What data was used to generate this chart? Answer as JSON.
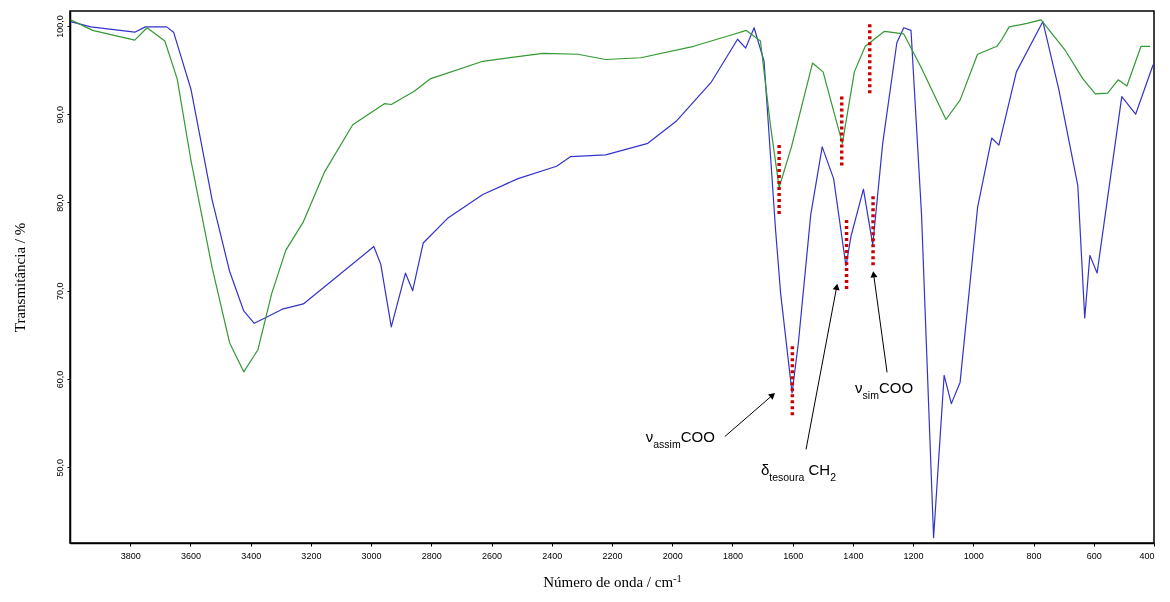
{
  "chart_data": {
    "type": "line",
    "xlabel": "Número de onda / cm$^{-1}$",
    "ylabel": "Transmitância / %",
    "xlim": [
      4000,
      400
    ],
    "xticks": [
      3800,
      3600,
      3400,
      3200,
      3000,
      2800,
      2600,
      2400,
      2200,
      2000,
      1800,
      1600,
      1400,
      1200,
      1000,
      800,
      600,
      400
    ],
    "ylim": [
      41.4,
      101.7
    ],
    "yticks": [
      {
        "value": 50,
        "label": "50,0"
      },
      {
        "value": 60,
        "label": "60,0"
      },
      {
        "value": 70,
        "label": "70,0"
      },
      {
        "value": 80,
        "label": "80,0"
      },
      {
        "value": 90,
        "label": "90,0"
      },
      {
        "value": 100,
        "label": "100,0"
      }
    ],
    "grid": false,
    "series": [
      {
        "color": "#3333cc",
        "line_style": "solid",
        "x": [
          3998,
          3931,
          3785,
          3750,
          3679,
          3656,
          3598,
          3528,
          3470,
          3423,
          3388,
          3341,
          3295,
          3225,
          3120,
          2991,
          2968,
          2933,
          2886,
          2862,
          2827,
          2746,
          2629,
          2512,
          2384,
          2337,
          2221,
          2081,
          1987,
          1871,
          1783,
          1756,
          1728,
          1695,
          1657,
          1640,
          1602,
          1581,
          1540,
          1502,
          1464,
          1423,
          1406,
          1365,
          1334,
          1301,
          1254,
          1231,
          1207,
          1172,
          1132,
          1097,
          1073,
          1044,
          986,
          939,
          915,
          857,
          769,
          716,
          653,
          630,
          613,
          589,
          507,
          461,
          403
        ],
        "values": [
          100.5,
          99.9,
          99.3,
          99.9,
          99.9,
          99.3,
          92.8,
          80.3,
          72.2,
          67.7,
          66.3,
          67.1,
          67.9,
          68.5,
          71.4,
          75.0,
          73.0,
          65.9,
          72.0,
          70.0,
          75.4,
          78.2,
          80.9,
          82.7,
          84.1,
          85.2,
          85.4,
          86.7,
          89.2,
          93.6,
          98.5,
          97.5,
          99.8,
          96.0,
          77.0,
          69.7,
          58.4,
          64.1,
          78.6,
          86.3,
          82.7,
          72.8,
          76.2,
          81.5,
          75.2,
          86.7,
          98.1,
          99.8,
          99.5,
          78.6,
          42.0,
          60.4,
          57.2,
          59.6,
          79.4,
          87.3,
          86.5,
          94.8,
          100.5,
          92.8,
          81.9,
          66.9,
          74.0,
          72.0,
          92.0,
          90.0,
          95.6
        ]
      },
      {
        "color": "#339933",
        "line_style": "solid",
        "x": [
          3998,
          3925,
          3785,
          3744,
          3685,
          3644,
          3598,
          3528,
          3470,
          3423,
          3376,
          3330,
          3283,
          3225,
          3154,
          3061,
          2956,
          2933,
          2857,
          2804,
          2629,
          2429,
          2314,
          2221,
          2104,
          1929,
          1812,
          1754,
          1707,
          1674,
          1645,
          1604,
          1534,
          1499,
          1435,
          1395,
          1359,
          1295,
          1231,
          1172,
          1091,
          1044,
          986,
          922,
          905,
          881,
          822,
          775,
          694,
          636,
          595,
          554,
          519,
          490,
          443,
          413
        ],
        "values": [
          100.7,
          99.5,
          98.4,
          99.8,
          98.3,
          94.0,
          84.7,
          72.6,
          64.1,
          60.8,
          63.3,
          69.7,
          74.6,
          77.8,
          83.5,
          88.8,
          91.2,
          91.1,
          92.6,
          94.0,
          96.0,
          96.9,
          96.8,
          96.2,
          96.4,
          97.7,
          98.9,
          99.5,
          98.3,
          88.8,
          81.7,
          86.3,
          95.8,
          94.8,
          86.7,
          94.8,
          97.7,
          99.4,
          99.1,
          95.2,
          89.4,
          91.6,
          96.8,
          97.7,
          98.5,
          99.9,
          100.3,
          100.7,
          97.2,
          94.0,
          92.3,
          92.4,
          93.9,
          93.2,
          97.7,
          97.7
        ]
      },
      {
        "color": "#cc0000",
        "line_style": "dotted",
        "x": [
          1645,
          1645
        ],
        "values": [
          86.5,
          78.4
        ]
      },
      {
        "color": "#cc0000",
        "line_style": "dotted",
        "x": [
          1601,
          1601
        ],
        "values": [
          63.7,
          55.6
        ]
      },
      {
        "color": "#cc0000",
        "line_style": "dotted",
        "x": [
          1437,
          1437
        ],
        "values": [
          92.0,
          83.9
        ]
      },
      {
        "color": "#cc0000",
        "line_style": "dotted",
        "x": [
          1421,
          1421
        ],
        "values": [
          78.0,
          70.0
        ]
      },
      {
        "color": "#cc0000",
        "line_style": "dotted",
        "x": [
          1344,
          1344
        ],
        "values": [
          100.2,
          92.1
        ]
      },
      {
        "color": "#cc0000",
        "line_style": "dotted",
        "x": [
          1333,
          1333
        ],
        "values": [
          80.7,
          72.6
        ]
      }
    ],
    "annotations": [
      "ν$_{assim}$COO",
      "δ$_{tesoura}$ CH$_{2}$",
      {
        "text": "ν$_{sim}$COO",
        "x": 1333,
        "y": 72.3
      }
    ]
  }
}
